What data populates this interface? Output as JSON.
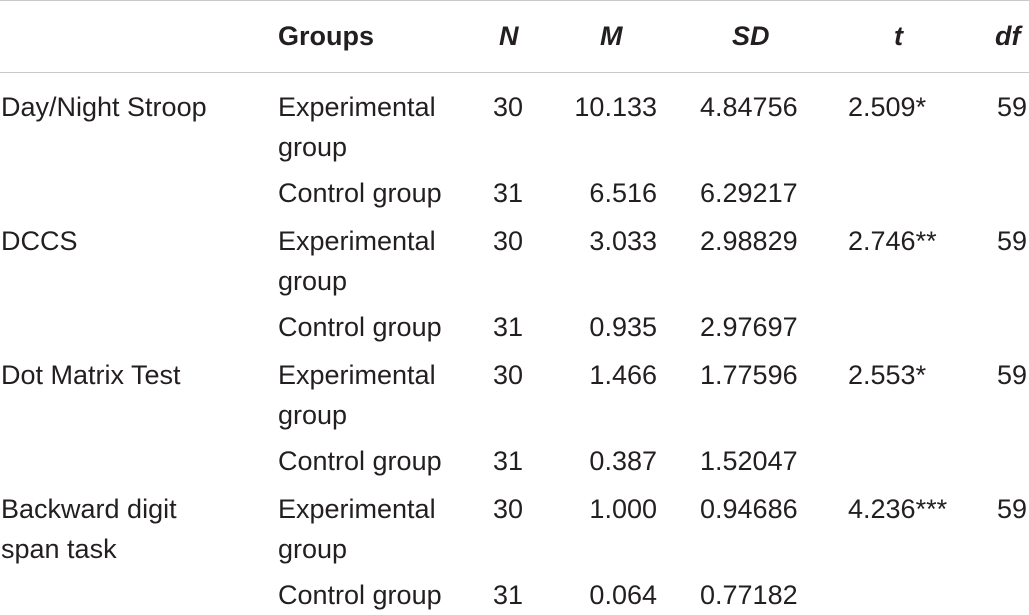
{
  "table": {
    "headers": {
      "measure": "",
      "groups": "Groups",
      "n": "N",
      "m": "M",
      "sd": "SD",
      "t": "t",
      "df": "df"
    },
    "rows": [
      {
        "measure": [
          "Day/Night Stroop",
          ""
        ],
        "experimental": {
          "group": [
            "Experimental",
            "group"
          ],
          "n": "30",
          "m": "10.133",
          "sd": "4.84756"
        },
        "control": {
          "group": "Control group",
          "n": "31",
          "m": "6.516",
          "sd": "6.29217"
        },
        "t": "2.509*",
        "df": "59"
      },
      {
        "measure": [
          "DCCS",
          ""
        ],
        "experimental": {
          "group": [
            "Experimental",
            "group"
          ],
          "n": "30",
          "m": "3.033",
          "sd": "2.98829"
        },
        "control": {
          "group": "Control group",
          "n": "31",
          "m": "0.935",
          "sd": "2.97697"
        },
        "t": "2.746**",
        "df": "59"
      },
      {
        "measure": [
          "Dot Matrix Test",
          ""
        ],
        "experimental": {
          "group": [
            "Experimental",
            "group"
          ],
          "n": "30",
          "m": "1.466",
          "sd": "1.77596"
        },
        "control": {
          "group": "Control group",
          "n": "31",
          "m": "0.387",
          "sd": "1.52047"
        },
        "t": "2.553*",
        "df": "59"
      },
      {
        "measure": [
          "Backward digit",
          "span task"
        ],
        "experimental": {
          "group": [
            "Experimental",
            "group"
          ],
          "n": "30",
          "m": "1.000",
          "sd": "0.94686"
        },
        "control": {
          "group": "Control group",
          "n": "31",
          "m": "0.064",
          "sd": "0.77182"
        },
        "t": "4.236***",
        "df": "59"
      }
    ]
  }
}
